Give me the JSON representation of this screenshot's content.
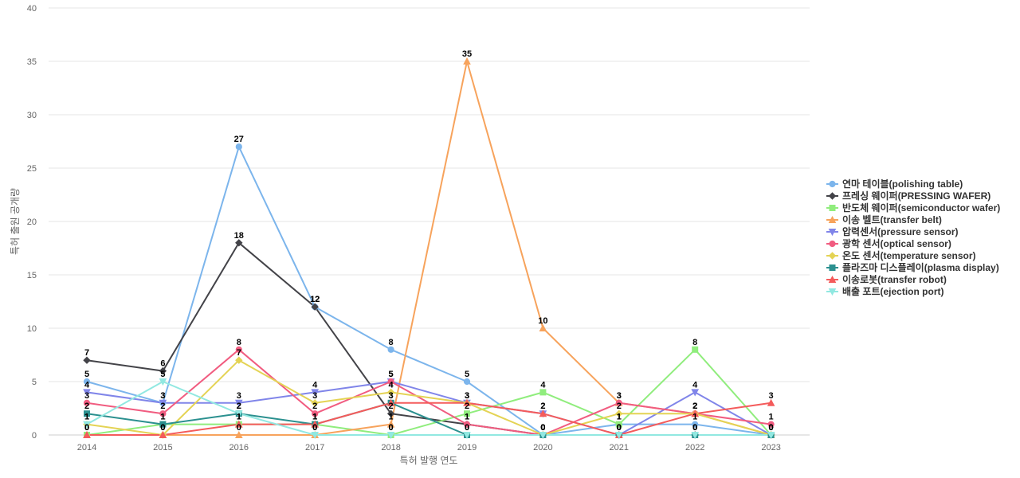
{
  "chart_data": {
    "type": "line",
    "title": "",
    "xlabel": "특허 발행 연도",
    "ylabel": "특허 출원 공개량",
    "x": [
      "2014",
      "2015",
      "2016",
      "2017",
      "2018",
      "2019",
      "2020",
      "2021",
      "2022",
      "2023"
    ],
    "ylim": [
      0,
      40
    ],
    "yticks": [
      0,
      5,
      10,
      15,
      20,
      25,
      30,
      35,
      40
    ],
    "grid": true,
    "legend_position": "right",
    "series": [
      {
        "name": "연마 테이블(polishing table)",
        "color": "#7cb5ec",
        "marker": "circle",
        "values": [
          5,
          3,
          27,
          12,
          8,
          5,
          0,
          1,
          1,
          0
        ]
      },
      {
        "name": "프레싱 웨이퍼(PRESSING WAFER)",
        "color": "#434348",
        "marker": "diamond",
        "values": [
          7,
          6,
          18,
          12,
          2,
          1,
          0,
          0,
          0,
          0
        ]
      },
      {
        "name": "반도체 웨이퍼(semiconductor wafer)",
        "color": "#90ed7d",
        "marker": "square",
        "values": [
          0,
          1,
          1,
          1,
          0,
          2,
          4,
          1,
          8,
          0
        ]
      },
      {
        "name": "이송 벨트(transfer belt)",
        "color": "#f7a35c",
        "marker": "triangle",
        "values": [
          0,
          0,
          0,
          0,
          1,
          35,
          10,
          3,
          2,
          0
        ]
      },
      {
        "name": "압력센서(pressure sensor)",
        "color": "#8085e9",
        "marker": "triangle-down",
        "values": [
          4,
          3,
          3,
          4,
          5,
          3,
          2,
          0,
          4,
          0
        ]
      },
      {
        "name": "광학 센서(optical sensor)",
        "color": "#f15c80",
        "marker": "circle",
        "values": [
          3,
          2,
          8,
          2,
          5,
          1,
          0,
          3,
          2,
          1
        ]
      },
      {
        "name": "온도 센서(temperature sensor)",
        "color": "#e4d354",
        "marker": "diamond",
        "values": [
          1,
          0,
          7,
          3,
          4,
          3,
          0,
          2,
          2,
          0
        ]
      },
      {
        "name": "플라즈마 디스플레이(plasma display)",
        "color": "#2b908f",
        "marker": "square",
        "values": [
          2,
          1,
          2,
          1,
          3,
          0,
          0,
          0,
          0,
          0
        ]
      },
      {
        "name": "이송로봇(transfer robot)",
        "color": "#f45b5b",
        "marker": "triangle",
        "values": [
          0,
          0,
          1,
          1,
          3,
          3,
          2,
          0,
          2,
          3
        ]
      },
      {
        "name": "배출 포트(ejection port)",
        "color": "#91e8e1",
        "marker": "triangle-down",
        "values": [
          1,
          5,
          2,
          0,
          0,
          0,
          0,
          0,
          0,
          0
        ]
      }
    ]
  }
}
